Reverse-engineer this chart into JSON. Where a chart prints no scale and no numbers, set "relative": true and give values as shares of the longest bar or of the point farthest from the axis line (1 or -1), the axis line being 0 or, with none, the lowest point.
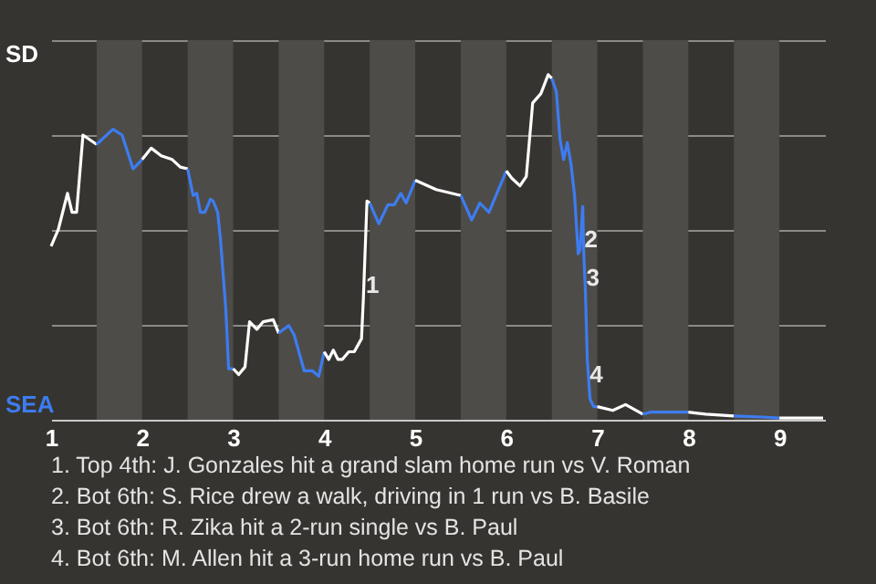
{
  "chart_data": {
    "type": "line",
    "relative": true,
    "series": [
      {
        "name": "SD",
        "color": "#ffffff",
        "x": [
          1.0,
          1.08,
          1.18,
          1.23,
          1.28,
          1.35,
          1.5
        ],
        "values": [
          0.503,
          0.552,
          0.656,
          0.601,
          0.601,
          0.825,
          0.798
        ]
      },
      {
        "name": "SEA",
        "color": "#3d7cf0",
        "x": [
          1.5,
          1.68,
          1.78,
          1.9,
          2.0
        ],
        "values": [
          0.798,
          0.842,
          0.825,
          0.727,
          0.754
        ]
      },
      {
        "color": "#ffffff",
        "x": [
          2.0,
          2.1,
          2.21,
          2.33,
          2.42,
          2.5
        ],
        "values": [
          0.754,
          0.787,
          0.765,
          0.754,
          0.732,
          0.727
        ]
      },
      {
        "color": "#3d7cf0",
        "x": [
          2.5,
          2.56,
          2.6,
          2.64,
          2.69,
          2.75,
          2.78,
          2.83,
          2.86,
          2.92,
          2.95,
          3.0
        ],
        "values": [
          0.727,
          0.65,
          0.656,
          0.601,
          0.601,
          0.639,
          0.634,
          0.601,
          0.525,
          0.317,
          0.148,
          0.148
        ]
      },
      {
        "color": "#ffffff",
        "x": [
          3.0,
          3.06,
          3.13,
          3.18,
          3.26,
          3.33,
          3.44,
          3.5
        ],
        "values": [
          0.148,
          0.131,
          0.153,
          0.284,
          0.262,
          0.284,
          0.29,
          0.251
        ]
      },
      {
        "color": "#3d7cf0",
        "x": [
          3.5,
          3.61,
          3.67,
          3.78,
          3.87,
          3.94,
          4.0
        ],
        "values": [
          0.251,
          0.273,
          0.246,
          0.142,
          0.142,
          0.126,
          0.197
        ]
      },
      {
        "color": "#ffffff",
        "x": [
          4.0,
          4.05,
          4.1,
          4.15,
          4.2,
          4.27,
          4.33,
          4.41,
          4.43,
          4.47,
          4.5
        ],
        "values": [
          0.197,
          0.175,
          0.202,
          0.175,
          0.175,
          0.197,
          0.197,
          0.235,
          0.35,
          0.634,
          0.628
        ]
      },
      {
        "color": "#3d7cf0",
        "x": [
          4.5,
          4.6,
          4.7,
          4.77,
          4.84,
          4.9,
          5.0
        ],
        "values": [
          0.628,
          0.568,
          0.623,
          0.623,
          0.656,
          0.628,
          0.694
        ]
      },
      {
        "color": "#ffffff",
        "x": [
          5.0,
          5.23,
          5.5
        ],
        "values": [
          0.694,
          0.667,
          0.65
        ]
      },
      {
        "color": "#3d7cf0",
        "x": [
          5.5,
          5.62,
          5.71,
          5.81,
          6.0
        ],
        "values": [
          0.65,
          0.579,
          0.628,
          0.601,
          0.721
        ]
      },
      {
        "color": "#ffffff",
        "x": [
          6.0,
          6.06,
          6.15,
          6.22,
          6.29,
          6.38,
          6.46,
          6.5
        ],
        "values": [
          0.721,
          0.7,
          0.678,
          0.705,
          0.918,
          0.945,
          1,
          0.989
        ]
      },
      {
        "color": "#3d7cf0",
        "x": [
          6.5,
          6.55,
          6.59,
          6.63,
          6.67,
          6.71,
          6.75,
          6.79,
          6.81,
          6.84,
          6.85,
          6.87,
          6.89,
          6.92,
          6.96,
          7.0
        ],
        "values": [
          0.989,
          0.951,
          0.814,
          0.754,
          0.803,
          0.743,
          0.65,
          0.481,
          0.492,
          0.618,
          0.492,
          0.366,
          0.175,
          0.06,
          0.038,
          0.038
        ]
      },
      {
        "color": "#ffffff",
        "x": [
          7.0,
          7.17,
          7.31,
          7.5
        ],
        "values": [
          0.038,
          0.027,
          0.044,
          0.016
        ]
      },
      {
        "color": "#3d7cf0",
        "x": [
          7.5,
          7.58,
          8.0
        ],
        "values": [
          0.016,
          0.022,
          0.022
        ]
      },
      {
        "color": "#ffffff",
        "x": [
          8.0,
          8.19,
          8.5
        ],
        "values": [
          0.022,
          0.016,
          0.011
        ]
      },
      {
        "color": "#3d7cf0",
        "x": [
          8.5,
          8.81,
          9.0
        ],
        "values": [
          0.011,
          0.008,
          0.005
        ]
      },
      {
        "color": "#ffffff",
        "x": [
          9.0,
          9.48
        ],
        "values": [
          0.005,
          0.005
        ]
      }
    ],
    "xlim": [
      1,
      9.5
    ],
    "xticks": [
      1,
      2,
      3,
      4,
      5,
      6,
      7,
      8,
      9
    ],
    "grid": "y",
    "bands": [
      {
        "axis": "x",
        "from": 1.5,
        "to": 2,
        "color": "#4e4c49"
      },
      {
        "axis": "x",
        "from": 2.5,
        "to": 3,
        "color": "#4e4c49"
      },
      {
        "axis": "x",
        "from": 3.5,
        "to": 4,
        "color": "#4e4c49"
      },
      {
        "axis": "x",
        "from": 4.5,
        "to": 5,
        "color": "#4e4c49"
      },
      {
        "axis": "x",
        "from": 5.5,
        "to": 6,
        "color": "#4e4c49"
      },
      {
        "axis": "x",
        "from": 6.5,
        "to": 7,
        "color": "#4e4c49"
      },
      {
        "axis": "x",
        "from": 7.5,
        "to": 8,
        "color": "#4e4c49"
      },
      {
        "axis": "x",
        "from": 8.5,
        "to": 9,
        "color": "#4e4c49"
      }
    ],
    "annotations": [
      {
        "text": "1",
        "x": 4.53,
        "y": 0.39
      },
      {
        "text": "2",
        "x": 6.93,
        "y": 0.52
      },
      {
        "text": "3",
        "x": 6.95,
        "y": 0.41
      },
      {
        "text": "4",
        "x": 6.99,
        "y": 0.13
      },
      "1. Top 4th: J. Gonzales hit a grand slam home run vs V. Roman",
      "2. Bot 6th: S. Rice drew a walk, driving in 1 run vs B. Basile",
      "3. Bot 6th: R. Zika hit a 2-run single vs B. Paul",
      "4. Bot 6th: M. Allen hit a 3-run home run vs B. Paul"
    ]
  }
}
